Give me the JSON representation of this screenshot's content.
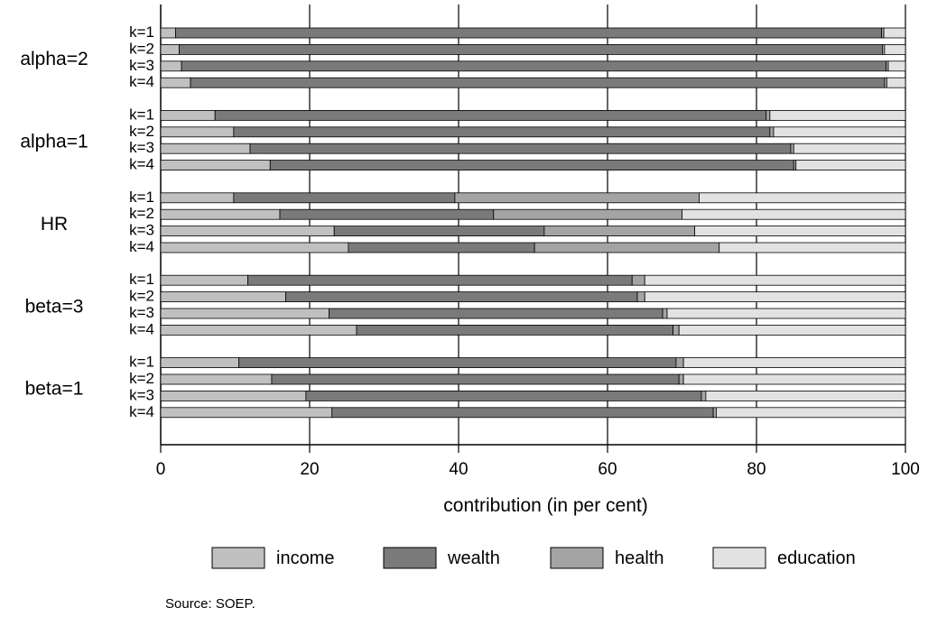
{
  "chart_data": {
    "type": "bar",
    "orientation": "horizontal",
    "stacked": true,
    "xlabel": "contribution (in per cent)",
    "xlim": [
      0,
      100
    ],
    "xticks": [
      "0",
      "20",
      "40",
      "60",
      "80",
      "100"
    ],
    "grid": true,
    "legend_position": "bottom",
    "series_names": [
      "income",
      "wealth",
      "health",
      "education"
    ],
    "colors": {
      "income": "#c0c0c0",
      "wealth": "#7a7a7a",
      "health": "#a4a4a4",
      "education": "#e2e2e2",
      "edge": "#000000"
    },
    "groups": [
      {
        "label": "alpha=2",
        "bars": [
          {
            "k": "k=1",
            "values": [
              2.0,
              94.8,
              0.3,
              2.9
            ]
          },
          {
            "k": "k=2",
            "values": [
              2.5,
              94.4,
              0.3,
              2.8
            ]
          },
          {
            "k": "k=3",
            "values": [
              2.8,
              94.6,
              0.3,
              2.3
            ]
          },
          {
            "k": "k=4",
            "values": [
              4.0,
              93.2,
              0.3,
              2.5
            ]
          }
        ]
      },
      {
        "label": "alpha=1",
        "bars": [
          {
            "k": "k=1",
            "values": [
              7.3,
              74.0,
              0.5,
              18.2
            ]
          },
          {
            "k": "k=2",
            "values": [
              9.8,
              72.0,
              0.5,
              17.7
            ]
          },
          {
            "k": "k=3",
            "values": [
              12.0,
              72.6,
              0.4,
              15.0
            ]
          },
          {
            "k": "k=4",
            "values": [
              14.7,
              70.3,
              0.3,
              14.7
            ]
          }
        ]
      },
      {
        "label": "HR",
        "bars": [
          {
            "k": "k=1",
            "values": [
              9.8,
              29.7,
              32.8,
              27.7
            ]
          },
          {
            "k": "k=2",
            "values": [
              16.0,
              28.7,
              25.3,
              30.0
            ]
          },
          {
            "k": "k=3",
            "values": [
              23.3,
              28.2,
              20.2,
              28.3
            ]
          },
          {
            "k": "k=4",
            "values": [
              25.2,
              25.0,
              24.8,
              25.0
            ]
          }
        ]
      },
      {
        "label": "beta=3",
        "bars": [
          {
            "k": "k=1",
            "values": [
              11.7,
              51.6,
              1.7,
              35.0
            ]
          },
          {
            "k": "k=2",
            "values": [
              16.8,
              47.2,
              1.0,
              35.0
            ]
          },
          {
            "k": "k=3",
            "values": [
              22.6,
              44.8,
              0.6,
              32.0
            ]
          },
          {
            "k": "k=4",
            "values": [
              26.3,
              42.5,
              0.8,
              30.4
            ]
          }
        ]
      },
      {
        "label": "beta=1",
        "bars": [
          {
            "k": "k=1",
            "values": [
              10.5,
              58.7,
              1.0,
              29.8
            ]
          },
          {
            "k": "k=2",
            "values": [
              14.9,
              54.7,
              0.6,
              29.8
            ]
          },
          {
            "k": "k=3",
            "values": [
              19.5,
              53.1,
              0.6,
              26.8
            ]
          },
          {
            "k": "k=4",
            "values": [
              23.0,
              51.2,
              0.4,
              25.4
            ]
          }
        ]
      }
    ],
    "source": "Source: SOEP."
  }
}
